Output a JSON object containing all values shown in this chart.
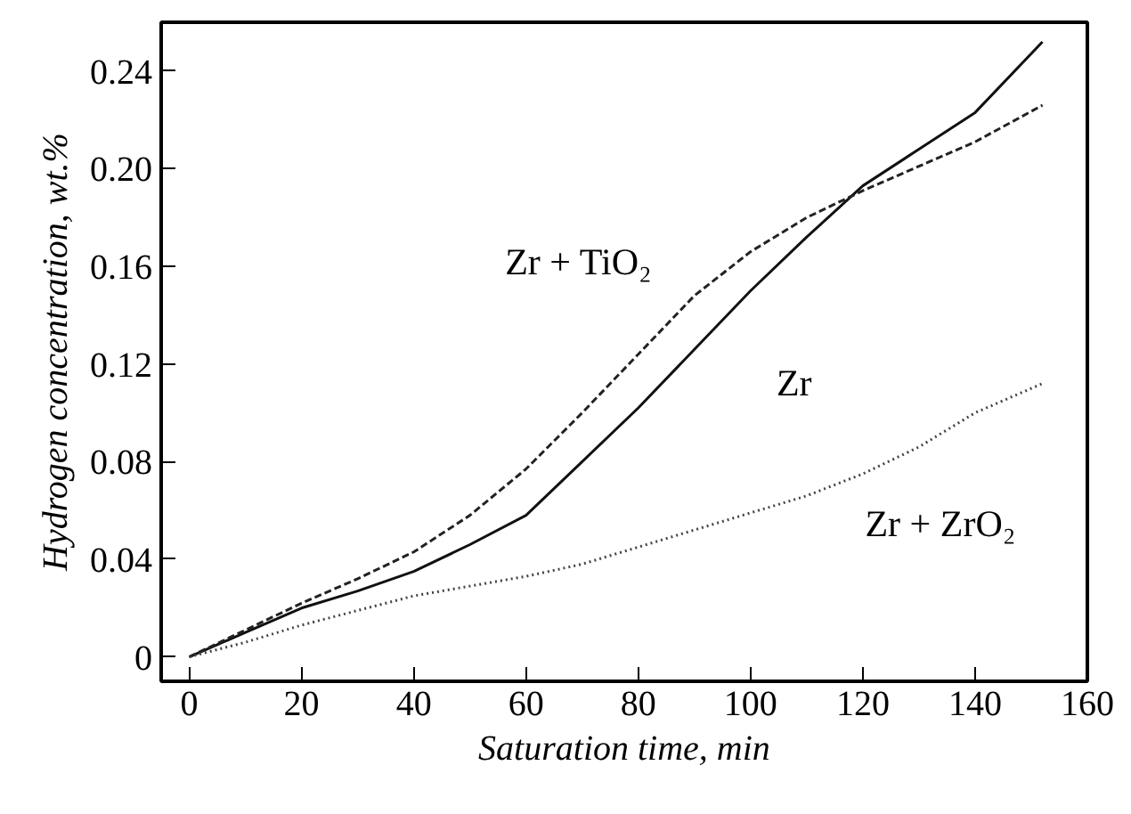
{
  "chart_data": {
    "type": "line",
    "xlabel": "Saturation time, min",
    "ylabel": "Hydrogen concentration, wt.%",
    "xlim": [
      -5,
      160
    ],
    "ylim": [
      -0.01,
      0.26
    ],
    "xticks": [
      0,
      20,
      40,
      60,
      80,
      100,
      120,
      140,
      160
    ],
    "yticks": [
      {
        "value": 0,
        "label": "0"
      },
      {
        "value": 0.04,
        "label": "0.04"
      },
      {
        "value": 0.08,
        "label": "0.08"
      },
      {
        "value": 0.12,
        "label": "0.12"
      },
      {
        "value": 0.16,
        "label": "0.16"
      },
      {
        "value": 0.2,
        "label": "0.20"
      },
      {
        "value": 0.24,
        "label": "0.24"
      }
    ],
    "grid": false,
    "legend": false,
    "marker": "none",
    "x": [
      0,
      10,
      20,
      30,
      40,
      50,
      60,
      70,
      80,
      90,
      100,
      110,
      120,
      130,
      140,
      152
    ],
    "series": [
      {
        "name": "Zr",
        "color": "#111111",
        "line_style": "solid",
        "values": [
          0,
          0.01,
          0.02,
          0.027,
          0.035,
          0.046,
          0.058,
          0.08,
          0.102,
          0.126,
          0.15,
          0.172,
          0.193,
          0.208,
          0.223,
          0.252
        ]
      },
      {
        "name": "Zr + TiO₂",
        "color": "#222222",
        "line_style": "dashed",
        "values": [
          0,
          0.011,
          0.022,
          0.032,
          0.043,
          0.058,
          0.077,
          0.1,
          0.124,
          0.148,
          0.166,
          0.18,
          0.191,
          0.201,
          0.211,
          0.226
        ]
      },
      {
        "name": "Zr + ZrO₂",
        "color": "#444444",
        "line_style": "dotted",
        "values": [
          0,
          0.006,
          0.013,
          0.019,
          0.025,
          0.029,
          0.033,
          0.038,
          0.045,
          0.052,
          0.059,
          0.066,
          0.075,
          0.086,
          0.1,
          0.112
        ]
      }
    ]
  }
}
